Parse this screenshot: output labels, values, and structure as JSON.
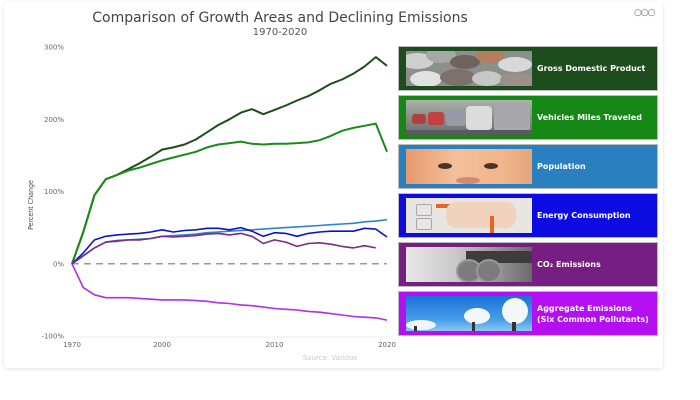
{
  "header": {
    "title": "Comparison of Growth Areas and Declining Emissions",
    "subtitle": "1970-2020",
    "more_icon": "ellipsis-icon"
  },
  "chart_data": {
    "type": "line",
    "title": "Comparison of Growth Areas and Declining Emissions",
    "subtitle": "1970-2020",
    "xlabel": "",
    "ylabel": "Percent Change",
    "source": "Source: Various",
    "ylim": [
      -100,
      300
    ],
    "yticks": [
      "300%",
      "200%",
      "100%",
      "0%",
      "-100%"
    ],
    "ytick_values": [
      300,
      200,
      100,
      0,
      -100
    ],
    "xtick_labels": [
      "1970",
      "2000",
      "2010",
      "2020"
    ],
    "x": [
      1970,
      1980,
      1990,
      1995,
      1996,
      1997,
      1998,
      1999,
      2000,
      2001,
      2002,
      2003,
      2004,
      2005,
      2006,
      2007,
      2008,
      2009,
      2010,
      2011,
      2012,
      2013,
      2014,
      2015,
      2016,
      2017,
      2018,
      2019,
      2020
    ],
    "baseline": 0,
    "grid": false,
    "legend_position": "right",
    "series": [
      {
        "name": "Gross Domestic Product",
        "color": "#1e4d1e",
        "values": [
          0,
          44,
          95,
          117,
          123,
          131,
          139,
          148,
          158,
          161,
          165,
          172,
          182,
          192,
          200,
          209,
          214,
          207,
          213,
          219,
          226,
          232,
          240,
          249,
          255,
          263,
          273,
          286,
          274
        ]
      },
      {
        "name": "Vehicles Miles Traveled",
        "color": "#1a8a1a",
        "values": [
          0,
          44,
          95,
          117,
          123,
          129,
          133,
          138,
          143,
          147,
          151,
          155,
          161,
          165,
          167,
          169,
          166,
          165,
          166,
          166,
          167,
          168,
          171,
          177,
          184,
          188,
          191,
          194,
          155
        ]
      },
      {
        "name": "Population",
        "color": "#2e86c1",
        "values": [
          0,
          11,
          22,
          30,
          31,
          33,
          34,
          35,
          38,
          39,
          40,
          41,
          43,
          44,
          45,
          46,
          47,
          48,
          49,
          50,
          51,
          52,
          53,
          54,
          55,
          56,
          58,
          59,
          61
        ]
      },
      {
        "name": "Energy Consumption",
        "color": "#0a14c8",
        "values": [
          0,
          15,
          33,
          38,
          40,
          41,
          42,
          44,
          47,
          44,
          46,
          47,
          49,
          49,
          47,
          50,
          45,
          38,
          43,
          42,
          38,
          42,
          44,
          45,
          45,
          45,
          49,
          48,
          37
        ]
      },
      {
        "name": "CO₂ Emissions",
        "color": "#7b2a86",
        "values": [
          0,
          11,
          22,
          30,
          32,
          33,
          33,
          35,
          38,
          37,
          38,
          39,
          41,
          42,
          40,
          42,
          38,
          28,
          33,
          30,
          24,
          28,
          29,
          27,
          24,
          22,
          25,
          22,
          null
        ]
      },
      {
        "name": "Aggregate Emissions (Six Common Pollutants)",
        "color": "#b12ee8",
        "values": [
          0,
          -33,
          -43,
          -47,
          -47,
          -47,
          -48,
          -49,
          -50,
          -50,
          -50,
          -51,
          -52,
          -54,
          -55,
          -57,
          -58,
          -60,
          -62,
          -63,
          -64,
          -66,
          -67,
          -69,
          -71,
          -73,
          -74,
          -75,
          -78
        ]
      }
    ]
  },
  "legend": [
    {
      "label": "Gross Domestic Product",
      "label2": "",
      "bg": "#1d4d1d",
      "image": "coins-photo"
    },
    {
      "label": "Vehicles Miles Traveled",
      "label2": "",
      "bg": "#148714",
      "image": "traffic-photo"
    },
    {
      "label": "Population",
      "label2": "",
      "bg": "#2a7fbf",
      "image": "baby-photo"
    },
    {
      "label": "Energy Consumption",
      "label2": "",
      "bg": "#0c0ce0",
      "image": "plug-photo"
    },
    {
      "label": "CO₂ Emissions",
      "label2": "",
      "bg": "#771e82",
      "image": "exhaust-photo"
    },
    {
      "label": "Aggregate Emissions",
      "label2": "(Six Common Pollutants)",
      "bg": "#b40ff0",
      "image": "smokestack-photo"
    }
  ]
}
